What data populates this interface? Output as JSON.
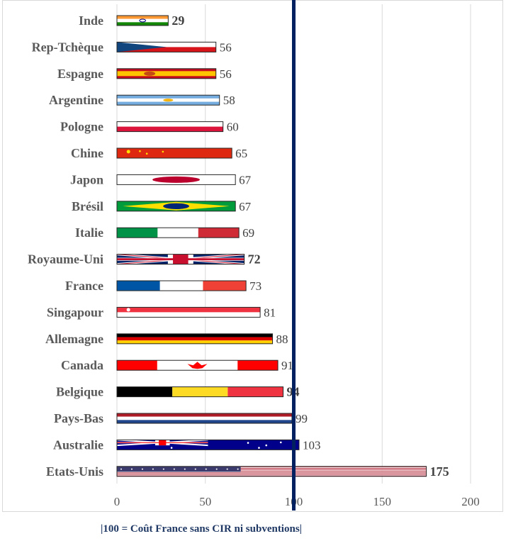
{
  "chart_data": {
    "type": "bar",
    "orientation": "horizontal",
    "categories": [
      "Inde",
      "Rep-Tchèque",
      "Espagne",
      "Argentine",
      "Pologne",
      "Chine",
      "Japon",
      "Brésil",
      "Italie",
      "Royaume-Uni",
      "France",
      "Singapour",
      "Allemagne",
      "Canada",
      "Belgique",
      "Pays-Bas",
      "Australie",
      "Etats-Unis"
    ],
    "values": [
      29,
      56,
      56,
      58,
      60,
      65,
      67,
      67,
      69,
      72,
      73,
      81,
      88,
      91,
      94,
      99,
      103,
      175
    ],
    "bold_value_labels": [
      true,
      false,
      false,
      false,
      false,
      false,
      false,
      false,
      false,
      true,
      false,
      false,
      false,
      false,
      true,
      false,
      false,
      true
    ],
    "flag_icons": [
      "india-flag",
      "czech-flag",
      "spain-flag",
      "argentina-flag",
      "poland-flag",
      "china-flag",
      "japan-flag",
      "brazil-flag",
      "italy-flag",
      "uk-flag",
      "france-flag",
      "singapore-flag",
      "germany-flag",
      "canada-flag",
      "belgium-flag",
      "netherlands-flag",
      "australia-flag",
      "usa-flag"
    ],
    "xlim": [
      0,
      200
    ],
    "xticks": [
      0,
      50,
      100,
      150,
      200
    ],
    "xtick_labels": [
      "0",
      "50",
      "100",
      "150",
      "200"
    ],
    "reference_line": {
      "value": 100,
      "color": "#002060"
    },
    "grid": "vertical",
    "legend": "none",
    "title": "",
    "xlabel": "",
    "ylabel": ""
  },
  "footnote": "|100 = Coût France sans CIR ni subventions|"
}
